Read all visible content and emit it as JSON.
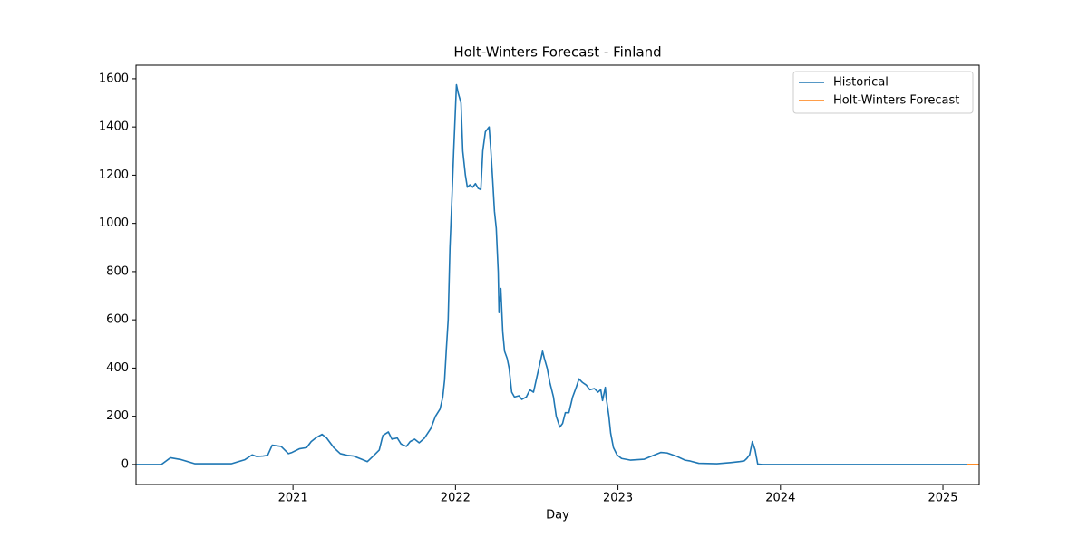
{
  "chart_data": {
    "type": "line",
    "title": "Holt-Winters Forecast - Finland",
    "xlabel": "Day",
    "xlim": [
      2020.034,
      2025.223
    ],
    "xticks": [
      2021,
      2022,
      2023,
      2024,
      2025
    ],
    "ylim": [
      -83,
      1656
    ],
    "yticks": [
      0,
      200,
      400,
      600,
      800,
      1000,
      1200,
      1400,
      1600
    ],
    "legend": "upper right",
    "series": [
      {
        "name": "Historical",
        "color": "#1f77b4",
        "x": [
          2020.034,
          2020.19,
          2020.246,
          2020.313,
          2020.397,
          2020.62,
          2020.704,
          2020.749,
          2020.777,
          2020.816,
          2020.844,
          2020.872,
          2020.927,
          2020.972,
          2020.994,
          2021.039,
          2021.084,
          2021.112,
          2021.14,
          2021.179,
          2021.207,
          2021.251,
          2021.291,
          2021.335,
          2021.374,
          2021.43,
          2021.458,
          2021.486,
          2021.531,
          2021.553,
          2021.587,
          2021.609,
          2021.642,
          2021.665,
          2021.698,
          2021.721,
          2021.749,
          2021.777,
          2021.81,
          2021.849,
          2021.877,
          2021.905,
          2021.922,
          2021.933,
          2021.944,
          2021.955,
          2021.966,
          2021.978,
          2021.989,
          2022.006,
          2022.017,
          2022.034,
          2022.045,
          2022.061,
          2022.073,
          2022.089,
          2022.106,
          2022.123,
          2022.14,
          2022.156,
          2022.168,
          2022.184,
          2022.207,
          2022.218,
          2022.229,
          2022.24,
          2022.251,
          2022.263,
          2022.268,
          2022.279,
          2022.291,
          2022.302,
          2022.318,
          2022.33,
          2022.346,
          2022.363,
          2022.391,
          2022.408,
          2022.436,
          2022.458,
          2022.48,
          2022.503,
          2022.52,
          2022.536,
          2022.547,
          2022.564,
          2022.581,
          2022.603,
          2022.62,
          2022.642,
          2022.659,
          2022.676,
          2022.698,
          2022.721,
          2022.743,
          2022.76,
          2022.782,
          2022.804,
          2022.827,
          2022.855,
          2022.877,
          2022.894,
          2022.905,
          2022.922,
          2022.927,
          2022.944,
          2022.955,
          2022.972,
          2022.994,
          2023.022,
          2023.078,
          2023.162,
          2023.207,
          2023.263,
          2023.302,
          2023.358,
          2023.413,
          2023.441,
          2023.497,
          2023.609,
          2023.693,
          2023.749,
          2023.777,
          2023.793,
          2023.81,
          2023.827,
          2023.844,
          2023.86,
          2023.888,
          2025.145
        ],
        "values": [
          0,
          0,
          28,
          20,
          3,
          3,
          20,
          40,
          33,
          35,
          38,
          80,
          75,
          45,
          50,
          65,
          70,
          95,
          110,
          125,
          110,
          70,
          45,
          38,
          35,
          20,
          12,
          30,
          60,
          120,
          135,
          105,
          110,
          85,
          75,
          95,
          105,
          90,
          110,
          150,
          200,
          230,
          280,
          350,
          480,
          600,
          900,
          1100,
          1300,
          1575,
          1540,
          1500,
          1300,
          1200,
          1150,
          1160,
          1150,
          1165,
          1145,
          1140,
          1300,
          1380,
          1400,
          1300,
          1180,
          1050,
          980,
          800,
          630,
          730,
          550,
          470,
          440,
          400,
          300,
          280,
          285,
          270,
          280,
          310,
          300,
          370,
          420,
          470,
          440,
          400,
          340,
          280,
          200,
          155,
          170,
          215,
          215,
          280,
          320,
          355,
          340,
          330,
          310,
          315,
          300,
          310,
          265,
          320,
          280,
          200,
          130,
          70,
          40,
          25,
          18,
          22,
          35,
          50,
          48,
          35,
          18,
          15,
          5,
          3,
          8,
          12,
          15,
          25,
          40,
          95,
          60,
          2,
          0,
          0
        ]
      },
      {
        "name": "Holt-Winters Forecast",
        "color": "#ff7f0e",
        "x": [
          2025.145,
          2025.223
        ],
        "values": [
          0,
          0
        ]
      }
    ]
  }
}
